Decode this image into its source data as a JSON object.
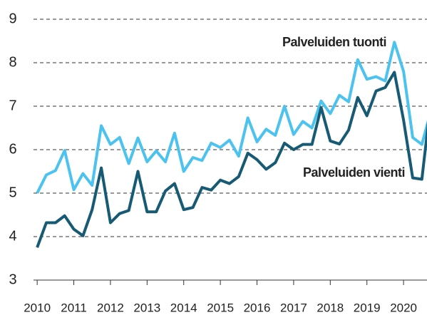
{
  "chart_data": {
    "type": "line",
    "x": [
      2010,
      2010.25,
      2010.5,
      2010.75,
      2011,
      2011.25,
      2011.5,
      2011.75,
      2012,
      2012.25,
      2012.5,
      2012.75,
      2013,
      2013.25,
      2013.5,
      2013.75,
      2014,
      2014.25,
      2014.5,
      2014.75,
      2015,
      2015.25,
      2015.5,
      2015.75,
      2016,
      2016.25,
      2016.5,
      2016.75,
      2017,
      2017.25,
      2017.5,
      2017.75,
      2018,
      2018.25,
      2018.5,
      2018.75,
      2019,
      2019.25,
      2019.5,
      2019.75,
      2020,
      2020.25,
      2020.5,
      2020.75
    ],
    "series": [
      {
        "name": "Palveluiden tuonti",
        "color": "#4cc3ef",
        "values": [
          5.0,
          5.42,
          5.52,
          5.98,
          5.08,
          5.45,
          5.18,
          6.55,
          6.12,
          6.28,
          5.68,
          6.27,
          5.72,
          5.97,
          5.72,
          6.38,
          5.5,
          5.82,
          5.75,
          6.15,
          6.05,
          6.22,
          5.85,
          6.73,
          6.18,
          6.47,
          6.33,
          7.0,
          6.35,
          6.65,
          6.5,
          7.12,
          6.83,
          7.25,
          7.1,
          8.07,
          7.62,
          7.68,
          7.58,
          8.47,
          7.8,
          6.28,
          6.12,
          6.9
        ]
      },
      {
        "name": "Palveluiden vienti",
        "color": "#175a74",
        "values": [
          3.75,
          4.32,
          4.32,
          4.48,
          4.17,
          4.02,
          4.62,
          5.58,
          4.32,
          4.53,
          4.6,
          5.5,
          4.57,
          4.57,
          5.05,
          5.22,
          4.62,
          4.67,
          5.13,
          5.07,
          5.3,
          5.22,
          5.38,
          5.92,
          5.77,
          5.55,
          5.7,
          6.15,
          6.0,
          6.12,
          6.12,
          6.97,
          6.2,
          6.13,
          6.45,
          7.2,
          6.78,
          7.35,
          7.43,
          7.78,
          6.68,
          5.35,
          5.32,
          7.15
        ]
      }
    ],
    "xlim": [
      2009.9,
      2020.64
    ],
    "xticks": [
      2010,
      2011,
      2012,
      2013,
      2014,
      2015,
      2016,
      2017,
      2018,
      2019,
      2020
    ],
    "ylim": [
      3,
      9
    ],
    "yticks": [
      3,
      4,
      5,
      6,
      7,
      8,
      9
    ],
    "grid": true
  }
}
